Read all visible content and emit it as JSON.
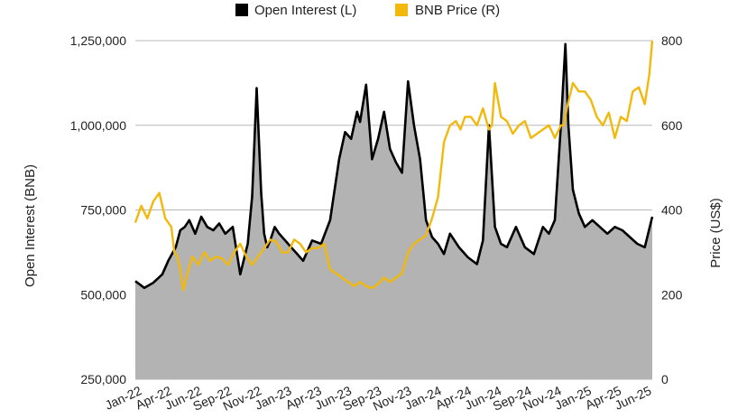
{
  "chart_data": {
    "type": "area",
    "title": "",
    "legend_position": "top",
    "x_ticks": [
      "Jan-22",
      "Apr-22",
      "Jun-22",
      "Sep-22",
      "Nov-22",
      "Jan-23",
      "Apr-23",
      "Jun-23",
      "Sep-23",
      "Nov-23",
      "Jan-24",
      "Apr-24",
      "Jun-24",
      "Sep-24",
      "Nov-24",
      "Jan-25",
      "Apr-25",
      "Jun-25"
    ],
    "x_range": [
      2022.0,
      2025.45
    ],
    "y_left": {
      "label": "Open Interest (BNB)",
      "range": [
        250000,
        1250000
      ],
      "ticks": [
        "250,000",
        "500,000",
        "750,000",
        "1,000,000",
        "1,250,000"
      ],
      "tick_values": [
        250000,
        500000,
        750000,
        1000000,
        1250000
      ]
    },
    "y_right": {
      "label": "Price (US$)",
      "range": [
        0,
        800
      ],
      "ticks": [
        "0",
        "200",
        "400",
        "600",
        "800"
      ],
      "tick_values": [
        0,
        200,
        400,
        600,
        800
      ]
    },
    "grid": true,
    "series": [
      {
        "name": "Open Interest (L)",
        "axis": "left",
        "style": "area",
        "color": "#000000",
        "fill": "#b3b3b3",
        "x": [
          2022.0,
          2022.06,
          2022.12,
          2022.18,
          2022.22,
          2022.27,
          2022.3,
          2022.33,
          2022.36,
          2022.4,
          2022.44,
          2022.48,
          2022.52,
          2022.56,
          2022.6,
          2022.65,
          2022.7,
          2022.75,
          2022.78,
          2022.81,
          2022.84,
          2022.86,
          2022.88,
          2022.9,
          2022.93,
          2022.96,
          2023.0,
          2023.04,
          2023.08,
          2023.12,
          2023.18,
          2023.24,
          2023.3,
          2023.36,
          2023.4,
          2023.44,
          2023.48,
          2023.5,
          2023.54,
          2023.58,
          2023.62,
          2023.66,
          2023.7,
          2023.74,
          2023.78,
          2023.82,
          2023.86,
          2023.9,
          2023.94,
          2023.98,
          2024.02,
          2024.06,
          2024.1,
          2024.16,
          2024.22,
          2024.28,
          2024.32,
          2024.36,
          2024.4,
          2024.44,
          2024.48,
          2024.54,
          2024.6,
          2024.66,
          2024.72,
          2024.76,
          2024.8,
          2024.84,
          2024.87,
          2024.89,
          2024.92,
          2024.96,
          2025.0,
          2025.05,
          2025.1,
          2025.15,
          2025.2,
          2025.25,
          2025.3,
          2025.35,
          2025.4,
          2025.45
        ],
        "values": [
          540000,
          520000,
          535000,
          560000,
          600000,
          640000,
          690000,
          700000,
          720000,
          680000,
          730000,
          700000,
          690000,
          710000,
          680000,
          700000,
          560000,
          650000,
          790000,
          1110000,
          800000,
          680000,
          640000,
          660000,
          700000,
          680000,
          660000,
          640000,
          620000,
          600000,
          660000,
          650000,
          720000,
          900000,
          980000,
          960000,
          1040000,
          1010000,
          1120000,
          900000,
          960000,
          1040000,
          930000,
          890000,
          860000,
          1130000,
          1000000,
          900000,
          720000,
          670000,
          650000,
          620000,
          680000,
          640000,
          610000,
          590000,
          660000,
          1000000,
          700000,
          650000,
          640000,
          700000,
          640000,
          620000,
          700000,
          680000,
          720000,
          1000000,
          1240000,
          1000000,
          810000,
          740000,
          700000,
          720000,
          700000,
          680000,
          700000,
          690000,
          670000,
          650000,
          640000,
          730000
        ]
      },
      {
        "name": "BNB Price (R)",
        "axis": "right",
        "style": "line",
        "color": "#f2b90c",
        "x": [
          2022.0,
          2022.04,
          2022.08,
          2022.12,
          2022.16,
          2022.2,
          2022.24,
          2022.26,
          2022.28,
          2022.3,
          2022.32,
          2022.34,
          2022.38,
          2022.42,
          2022.46,
          2022.5,
          2022.54,
          2022.58,
          2022.62,
          2022.66,
          2022.7,
          2022.74,
          2022.78,
          2022.82,
          2022.86,
          2022.9,
          2022.94,
          2022.98,
          2023.02,
          2023.06,
          2023.1,
          2023.14,
          2023.18,
          2023.22,
          2023.26,
          2023.3,
          2023.34,
          2023.38,
          2023.42,
          2023.46,
          2023.5,
          2023.54,
          2023.58,
          2023.62,
          2023.66,
          2023.7,
          2023.74,
          2023.78,
          2023.82,
          2023.86,
          2023.9,
          2023.94,
          2023.98,
          2024.02,
          2024.06,
          2024.1,
          2024.14,
          2024.17,
          2024.2,
          2024.24,
          2024.28,
          2024.32,
          2024.36,
          2024.38,
          2024.4,
          2024.44,
          2024.48,
          2024.52,
          2024.56,
          2024.6,
          2024.64,
          2024.68,
          2024.72,
          2024.76,
          2024.8,
          2024.84,
          2024.86,
          2024.88,
          2024.92,
          2024.96,
          2025.0,
          2025.04,
          2025.08,
          2025.12,
          2025.16,
          2025.2,
          2025.24,
          2025.28,
          2025.32,
          2025.36,
          2025.4,
          2025.43,
          2025.45
        ],
        "values": [
          370,
          410,
          380,
          420,
          440,
          380,
          360,
          300,
          290,
          260,
          210,
          240,
          290,
          270,
          300,
          280,
          290,
          285,
          270,
          300,
          320,
          290,
          270,
          290,
          310,
          330,
          325,
          300,
          300,
          330,
          320,
          300,
          310,
          310,
          320,
          260,
          250,
          240,
          230,
          220,
          230,
          220,
          215,
          225,
          240,
          230,
          240,
          250,
          300,
          320,
          330,
          340,
          380,
          430,
          560,
          600,
          610,
          590,
          620,
          620,
          600,
          640,
          590,
          600,
          700,
          620,
          610,
          580,
          600,
          610,
          570,
          580,
          590,
          600,
          570,
          600,
          600,
          640,
          700,
          680,
          680,
          660,
          620,
          600,
          630,
          570,
          620,
          610,
          680,
          690,
          650,
          720,
          800
        ]
      }
    ]
  }
}
